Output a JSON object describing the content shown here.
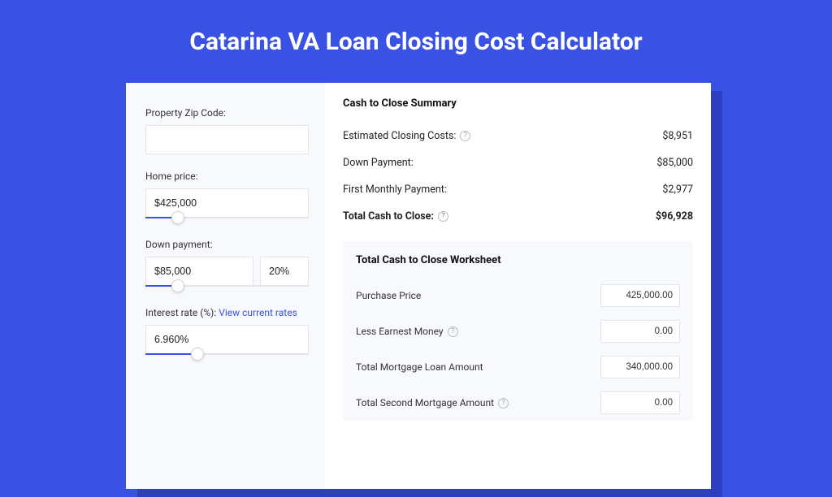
{
  "colors": {
    "page_bg": "#3952e3",
    "panel_shadow": "#2d3fc0",
    "panel_bg": "#ffffff",
    "left_col_bg": "#f8f9fc",
    "input_border": "#e2e5ea",
    "link": "#3952e3",
    "slider_fill": "#3952e3",
    "text_primary": "#111111",
    "text_body": "#333333"
  },
  "title": "Catarina VA Loan Closing Cost Calculator",
  "left": {
    "zip_label": "Property Zip Code:",
    "zip_value": "",
    "home_price_label": "Home price:",
    "home_price_value": "$425,000",
    "home_price_slider": {
      "fill_pct": 20,
      "thumb_pct": 20
    },
    "down_payment_label": "Down payment:",
    "down_payment_value": "$85,000",
    "down_payment_pct": "20%",
    "down_payment_slider": {
      "fill_pct": 20,
      "thumb_pct": 20
    },
    "interest_label_prefix": "Interest rate (%): ",
    "interest_link": "View current rates",
    "interest_value": "6.960%",
    "interest_slider": {
      "fill_pct": 32,
      "thumb_pct": 32
    }
  },
  "summary": {
    "title": "Cash to Close Summary",
    "rows": [
      {
        "label": "Estimated Closing Costs:",
        "help": true,
        "value": "$8,951",
        "bold": false
      },
      {
        "label": "Down Payment:",
        "help": false,
        "value": "$85,000",
        "bold": false
      },
      {
        "label": "First Monthly Payment:",
        "help": false,
        "value": "$2,977",
        "bold": false
      },
      {
        "label": "Total Cash to Close:",
        "help": true,
        "value": "$96,928",
        "bold": true
      }
    ]
  },
  "worksheet": {
    "title": "Total Cash to Close Worksheet",
    "rows": [
      {
        "label": "Purchase Price",
        "help": false,
        "value": "425,000.00"
      },
      {
        "label": "Less Earnest Money",
        "help": true,
        "value": "0.00"
      },
      {
        "label": "Total Mortgage Loan Amount",
        "help": false,
        "value": "340,000.00"
      },
      {
        "label": "Total Second Mortgage Amount",
        "help": true,
        "value": "0.00"
      }
    ]
  }
}
